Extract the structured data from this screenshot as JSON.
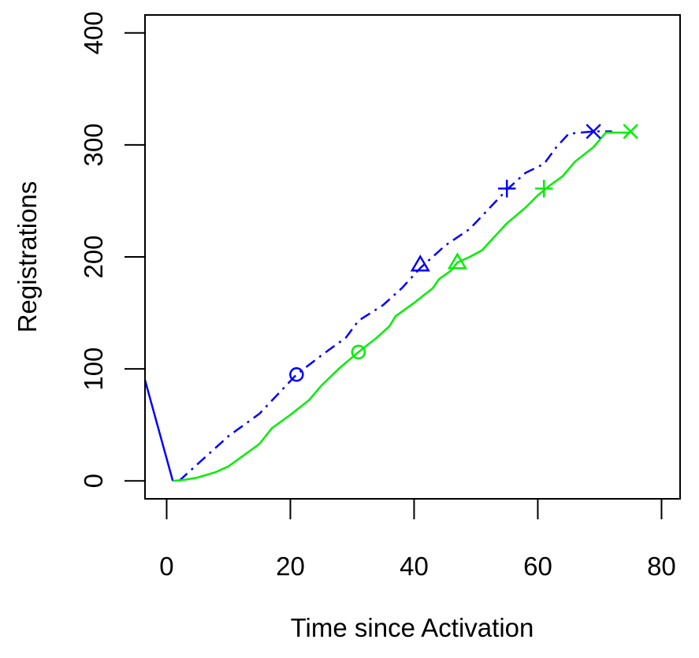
{
  "chart_data": {
    "type": "line",
    "title": "",
    "xlabel": "Time since Activation",
    "ylabel": "Registrations",
    "xlim": [
      -3.5,
      83
    ],
    "ylim": [
      -16,
      416
    ],
    "xticks": [
      0,
      20,
      40,
      60,
      80
    ],
    "yticks": [
      0,
      100,
      200,
      300,
      400
    ],
    "grid": false,
    "legend": "none",
    "series": [
      {
        "color": "#0000ff",
        "style": "solid",
        "points": [
          [
            -3.5,
            90
          ],
          [
            1,
            0
          ]
        ]
      },
      {
        "color": "#0000ff",
        "style": "dashdot",
        "points": [
          [
            2,
            0
          ],
          [
            5,
            15
          ],
          [
            10,
            40
          ],
          [
            15,
            60
          ],
          [
            21,
            95
          ],
          [
            25,
            112
          ],
          [
            29,
            128
          ],
          [
            31,
            143
          ],
          [
            35,
            157
          ],
          [
            38,
            172
          ],
          [
            41,
            190
          ],
          [
            45,
            210
          ],
          [
            49,
            225
          ],
          [
            55,
            260
          ],
          [
            58,
            275
          ],
          [
            61,
            283
          ],
          [
            63,
            298
          ],
          [
            65,
            310
          ],
          [
            69,
            312
          ],
          [
            72,
            312
          ]
        ]
      },
      {
        "color": "#00ee00",
        "style": "solid",
        "points": [
          [
            1,
            0
          ],
          [
            3,
            1
          ],
          [
            5,
            3
          ],
          [
            8,
            8
          ],
          [
            10,
            13
          ],
          [
            13,
            25
          ],
          [
            15,
            33
          ],
          [
            17,
            47
          ],
          [
            20,
            59
          ],
          [
            23,
            72
          ],
          [
            25,
            85
          ],
          [
            28,
            101
          ],
          [
            31,
            115
          ],
          [
            34,
            128
          ],
          [
            36,
            138
          ],
          [
            37,
            147
          ],
          [
            40,
            159
          ],
          [
            43,
            172
          ],
          [
            44,
            180
          ],
          [
            46,
            188
          ],
          [
            47,
            195
          ],
          [
            49,
            200
          ],
          [
            51,
            206
          ],
          [
            53,
            218
          ],
          [
            55,
            230
          ],
          [
            58,
            244
          ],
          [
            60,
            255
          ],
          [
            62,
            264
          ],
          [
            64,
            272
          ],
          [
            66,
            285
          ],
          [
            69,
            298
          ],
          [
            71,
            311
          ],
          [
            75,
            311
          ]
        ]
      }
    ],
    "markers": [
      {
        "series_color": "#0000ff",
        "symbol": "circle",
        "x": 21,
        "y": 95
      },
      {
        "series_color": "#0000ff",
        "symbol": "triangle",
        "x": 41,
        "y": 193
      },
      {
        "series_color": "#0000ff",
        "symbol": "plus",
        "x": 55,
        "y": 261
      },
      {
        "series_color": "#0000ff",
        "symbol": "cross",
        "x": 69,
        "y": 312
      },
      {
        "series_color": "#00ee00",
        "symbol": "circle",
        "x": 31,
        "y": 115
      },
      {
        "series_color": "#00ee00",
        "symbol": "triangle",
        "x": 47,
        "y": 195
      },
      {
        "series_color": "#00ee00",
        "symbol": "plus",
        "x": 61,
        "y": 261
      },
      {
        "series_color": "#00ee00",
        "symbol": "cross",
        "x": 75,
        "y": 312
      }
    ]
  }
}
